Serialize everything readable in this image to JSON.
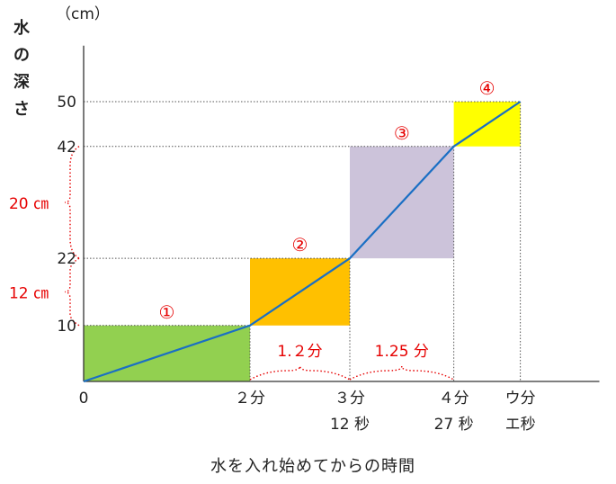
{
  "chart_data": {
    "type": "line",
    "title": "",
    "ylabel_chars": [
      "水",
      "の",
      "深",
      "さ"
    ],
    "unit_label": "（cm）",
    "xlabel": "水を入れ始めてからの時間",
    "origin_label": "0",
    "y_ticks": [
      {
        "value": 10,
        "label": "10"
      },
      {
        "value": 22,
        "label": "22"
      },
      {
        "value": 42,
        "label": "42"
      },
      {
        "value": 50,
        "label": "50"
      }
    ],
    "x_ticks": [
      {
        "value": 2,
        "line1": "２分",
        "line2": ""
      },
      {
        "value": 3.2,
        "line1": "３分",
        "line2": "12 秒"
      },
      {
        "value": 4.45,
        "line1": "４分",
        "line2": "27 秒"
      },
      {
        "value": 5.25,
        "line1": "ウ分",
        "line2": "エ秒"
      }
    ],
    "series": [
      {
        "values": [
          [
            0,
            0
          ],
          [
            2,
            10
          ],
          [
            3.2,
            22
          ],
          [
            4.45,
            42
          ],
          [
            5.25,
            50
          ]
        ],
        "color": "#1a6fc4"
      }
    ],
    "regions": [
      {
        "label": "①",
        "x0": 0,
        "x1": 2,
        "y0": 0,
        "y1": 10,
        "color": "#92d050"
      },
      {
        "label": "②",
        "x0": 2,
        "x1": 3.2,
        "y0": 10,
        "y1": 22,
        "color": "#ffc000"
      },
      {
        "label": "③",
        "x0": 3.2,
        "x1": 4.45,
        "y0": 22,
        "y1": 42,
        "color": "#ccc3da"
      },
      {
        "label": "④",
        "x0": 4.45,
        "x1": 5.25,
        "y0": 42,
        "y1": 50,
        "color": "#ffff00"
      }
    ],
    "y_braces": [
      {
        "from": 10,
        "to": 22,
        "label": "12 ㎝"
      },
      {
        "from": 22,
        "to": 42,
        "label": "20 ㎝"
      }
    ],
    "x_braces": [
      {
        "from": 2,
        "to": 3.2,
        "label": "1.２分"
      },
      {
        "from": 3.2,
        "to": 4.45,
        "label": "1.25 分"
      }
    ],
    "xlim": [
      0,
      6.2
    ],
    "ylim": [
      0,
      60
    ],
    "accent_color": "#e60000"
  }
}
